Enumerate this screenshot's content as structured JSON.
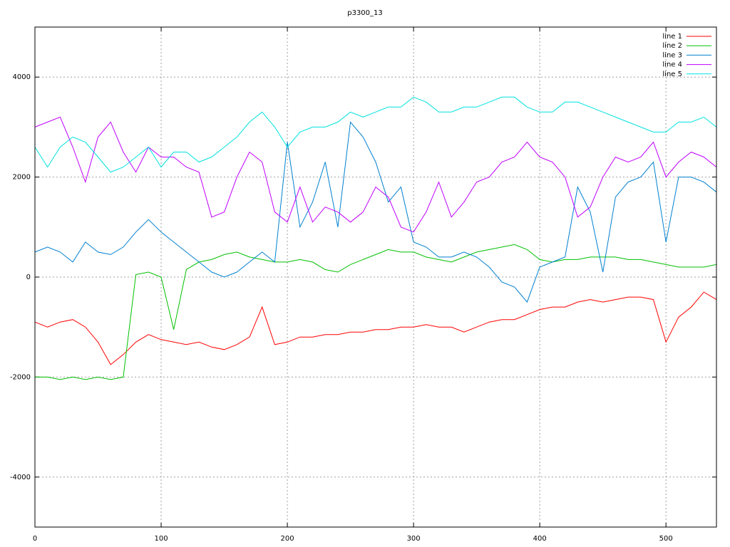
{
  "chart_data": {
    "type": "line",
    "title": "p3300_13",
    "x": [
      0,
      10,
      20,
      30,
      40,
      50,
      60,
      70,
      80,
      90,
      100,
      110,
      120,
      130,
      140,
      150,
      160,
      170,
      180,
      190,
      200,
      210,
      220,
      230,
      240,
      250,
      260,
      270,
      280,
      290,
      300,
      310,
      320,
      330,
      340,
      350,
      360,
      370,
      380,
      390,
      400,
      410,
      420,
      430,
      440,
      450,
      460,
      470,
      480,
      490,
      500,
      510,
      520,
      530,
      540
    ],
    "series": [
      {
        "name": "line 1",
        "color": "#ff0000",
        "values": [
          -900,
          -1000,
          -900,
          -850,
          -1000,
          -1300,
          -1750,
          -1550,
          -1300,
          -1150,
          -1250,
          -1300,
          -1350,
          -1300,
          -1400,
          -1450,
          -1350,
          -1200,
          -600,
          -1350,
          -1300,
          -1200,
          -1200,
          -1150,
          -1150,
          -1100,
          -1100,
          -1050,
          -1050,
          -1000,
          -1000,
          -950,
          -1000,
          -1000,
          -1100,
          -1000,
          -900,
          -850,
          -850,
          -750,
          -650,
          -600,
          -600,
          -500,
          -450,
          -500,
          -450,
          -400,
          -400,
          -450,
          -1300,
          -800,
          -600,
          -300,
          -450
        ]
      },
      {
        "name": "line 2",
        "color": "#00c000",
        "values": [
          -2000,
          -2000,
          -2050,
          -2000,
          -2050,
          -2000,
          -2050,
          -2000,
          50,
          100,
          0,
          -1050,
          150,
          300,
          350,
          450,
          500,
          400,
          350,
          300,
          300,
          350,
          300,
          150,
          100,
          250,
          350,
          450,
          550,
          500,
          500,
          400,
          350,
          300,
          400,
          500,
          550,
          600,
          650,
          550,
          350,
          300,
          350,
          350,
          400,
          400,
          400,
          350,
          350,
          300,
          250,
          200,
          200,
          200,
          250
        ]
      },
      {
        "name": "line 3",
        "color": "#0080d0",
        "values": [
          500,
          600,
          500,
          300,
          700,
          500,
          450,
          600,
          900,
          1150,
          900,
          700,
          500,
          300,
          100,
          0,
          100,
          300,
          500,
          300,
          2700,
          1000,
          1500,
          2300,
          1000,
          3100,
          2800,
          2300,
          1500,
          1800,
          700,
          600,
          400,
          400,
          500,
          400,
          200,
          -100,
          -200,
          -500,
          200,
          300,
          400,
          1800,
          1300,
          100,
          1600,
          1900,
          2000,
          2300,
          700,
          2000,
          2000,
          1900,
          1700
        ]
      },
      {
        "name": "line 4",
        "color": "#c000ff",
        "values": [
          3000,
          3100,
          3200,
          2600,
          1900,
          2800,
          3100,
          2500,
          2100,
          2600,
          2400,
          2400,
          2200,
          2100,
          1200,
          1300,
          2000,
          2500,
          2300,
          1300,
          1100,
          1800,
          1100,
          1400,
          1300,
          1100,
          1300,
          1800,
          1600,
          1000,
          900,
          1300,
          1900,
          1200,
          1500,
          1900,
          2000,
          2300,
          2400,
          2700,
          2400,
          2300,
          2000,
          1200,
          1400,
          2000,
          2400,
          2300,
          2400,
          2700,
          2000,
          2300,
          2500,
          2400,
          2200
        ]
      },
      {
        "name": "line 5",
        "color": "#00e0e0",
        "values": [
          2600,
          2200,
          2600,
          2800,
          2700,
          2400,
          2100,
          2200,
          2400,
          2600,
          2200,
          2500,
          2500,
          2300,
          2400,
          2600,
          2800,
          3100,
          3300,
          3000,
          2600,
          2900,
          3000,
          3000,
          3100,
          3300,
          3200,
          3300,
          3400,
          3400,
          3600,
          3500,
          3300,
          3300,
          3400,
          3400,
          3500,
          3600,
          3600,
          3400,
          3300,
          3300,
          3500,
          3500,
          3400,
          3300,
          3200,
          3100,
          3000,
          2900,
          2900,
          3100,
          3100,
          3200,
          3000
        ]
      }
    ],
    "xlim": [
      0,
      540
    ],
    "ylim": [
      -5000,
      5000
    ],
    "xticks": [
      0,
      100,
      200,
      300,
      400,
      500
    ],
    "yticks": [
      -4000,
      -2000,
      0,
      2000,
      4000
    ],
    "grid": true,
    "legend": "upper right"
  }
}
